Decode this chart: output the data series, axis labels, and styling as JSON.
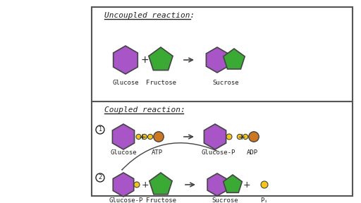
{
  "bg_color": "#ffffff",
  "border_color": "#555555",
  "purple": "#a855c8",
  "green": "#3aaa35",
  "yellow": "#f5c518",
  "orange": "#cc7722",
  "text_color": "#222222",
  "title1": "Uncoupled reaction:",
  "title2": "Coupled reaction:",
  "label_uncoupled": [
    "Glucose",
    "Fructose",
    "Sucrose"
  ],
  "label_coupled1": [
    "Glucose",
    "ATP",
    "Glucose-P",
    "ADP"
  ],
  "label_coupled2": [
    "Glucose-P",
    "Fructose",
    "Sucrose",
    "Pᵢ"
  ]
}
